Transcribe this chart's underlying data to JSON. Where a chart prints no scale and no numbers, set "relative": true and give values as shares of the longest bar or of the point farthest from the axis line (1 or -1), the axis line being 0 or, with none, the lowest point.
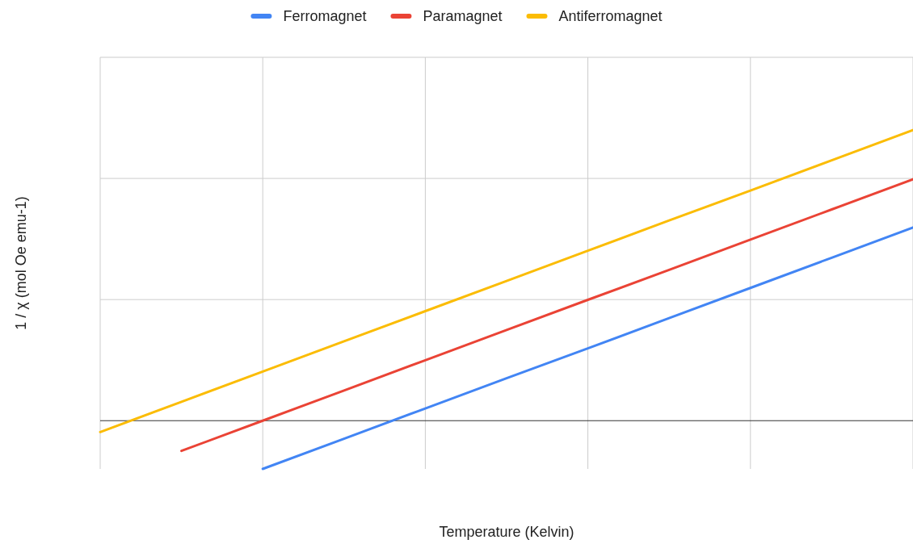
{
  "chart_data": {
    "type": "line",
    "xlabel": "Temperature (Kelvin)",
    "ylabel": "1 / χ (mol Oe emu-1)",
    "categories": [
      null,
      null,
      null,
      null,
      null,
      null,
      null,
      null,
      null,
      null,
      null
    ],
    "relative": true,
    "grid": true,
    "legend": "top",
    "series": [
      {
        "name": "Ferromagnet",
        "color": "#4285f4",
        "values": [
          null,
          null,
          -0.166,
          -0.062,
          0.042,
          0.146,
          0.249,
          0.353,
          0.457,
          0.561,
          0.665
        ]
      },
      {
        "name": "Paramagnet",
        "color": "#ea4335",
        "values": [
          null,
          -0.104,
          0,
          0.104,
          0.208,
          0.312,
          0.416,
          0.519,
          0.623,
          0.727,
          0.831
        ]
      },
      {
        "name": "Antiferromagnet",
        "color": "#fbbc04",
        "values": [
          -0.039,
          0.065,
          0.169,
          0.273,
          0.377,
          0.481,
          0.585,
          0.689,
          0.792,
          0.896,
          1
        ]
      }
    ]
  }
}
